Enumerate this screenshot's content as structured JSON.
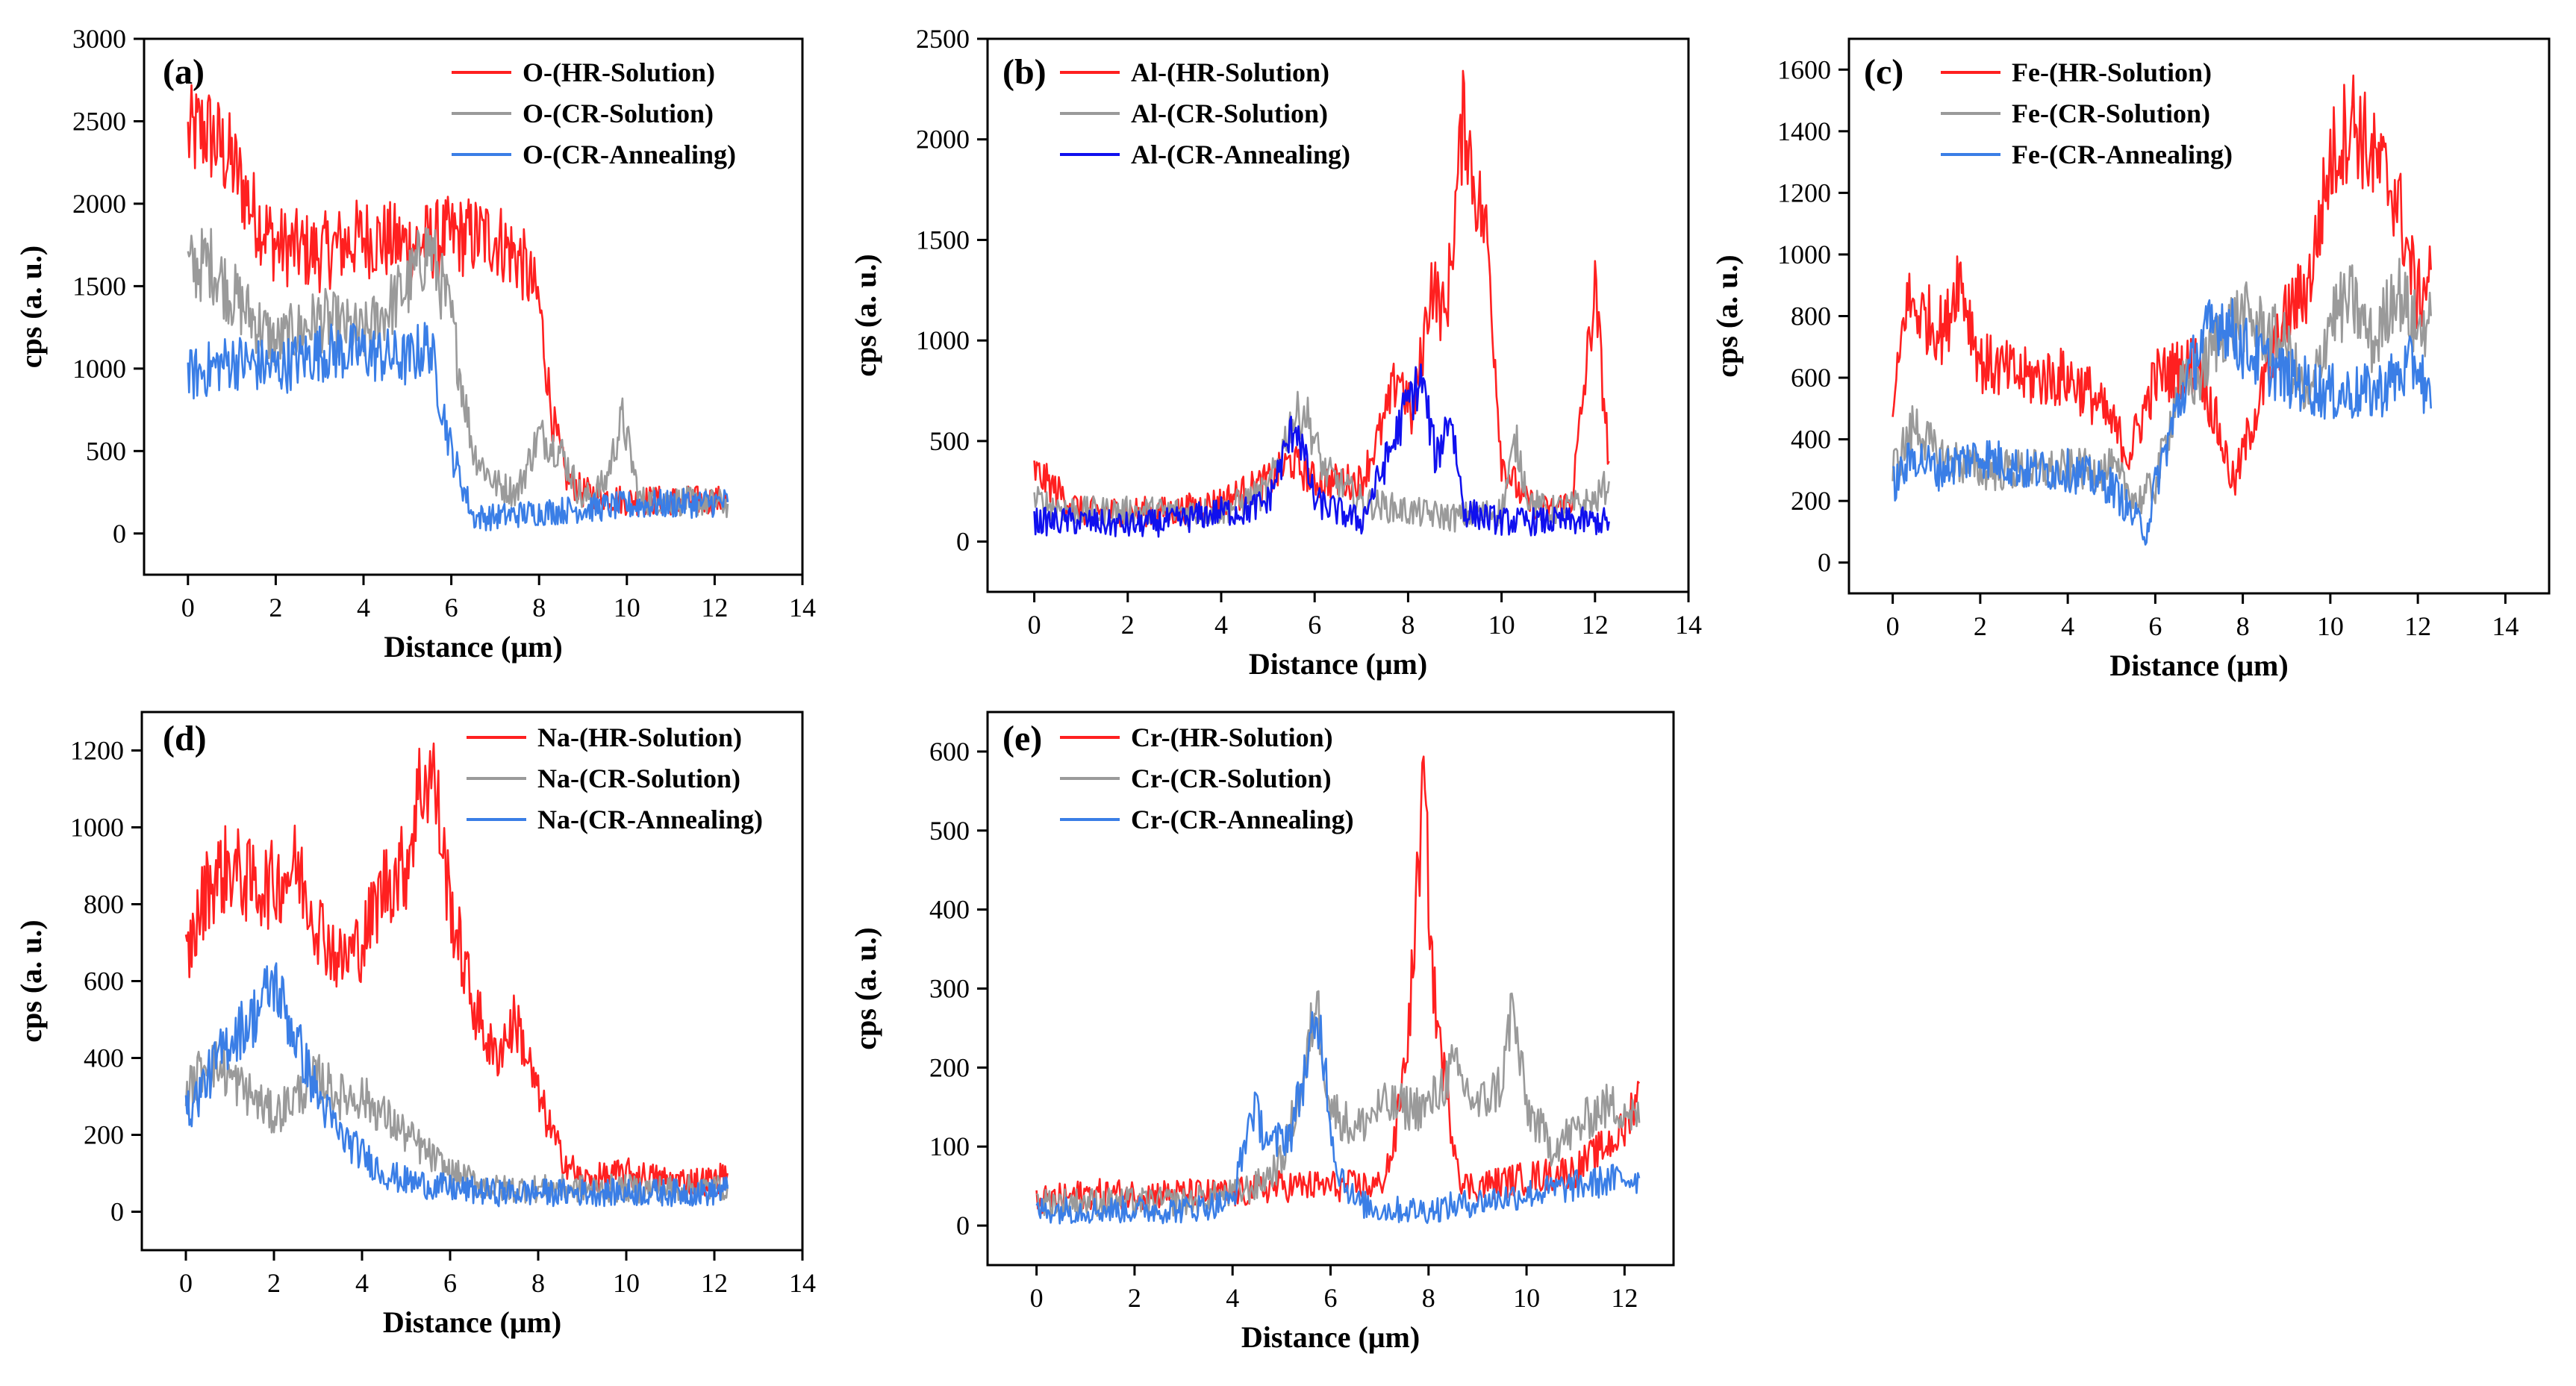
{
  "colors": {
    "hr": "#ff2020",
    "cr": "#9a9a9a",
    "ann": "#3a7ee6",
    "ann_b": "#1010ee"
  },
  "chart_data": [
    {
      "type": "line",
      "panel": "(a)",
      "xlabel": "Distance (μm)",
      "ylabel": "cps (a. u.)",
      "xlim": [
        -1,
        14
      ],
      "ylim": [
        -250,
        3000
      ],
      "xticks": [
        0,
        2,
        4,
        6,
        8,
        10,
        12,
        14
      ],
      "yticks": [
        0,
        500,
        1000,
        1500,
        2000,
        2500,
        3000
      ],
      "legend_position": "top-right",
      "series": [
        {
          "name": "O-(HR-Solution)",
          "color": "hr",
          "x": [
            0,
            0.4,
            1,
            1.5,
            2,
            3,
            4,
            5,
            6,
            7,
            7.6,
            8,
            8.3,
            8.6,
            9,
            10,
            11,
            12.3
          ],
          "y": [
            2400,
            2450,
            2250,
            1950,
            1750,
            1700,
            1800,
            1750,
            1800,
            1800,
            1650,
            1400,
            700,
            350,
            250,
            200,
            200,
            200
          ]
        },
        {
          "name": "O-(CR-Solution)",
          "color": "cr",
          "x": [
            0,
            0.5,
            1,
            2,
            3,
            4,
            5,
            5.5,
            6,
            6.5,
            7,
            7.5,
            8,
            8.5,
            9,
            9.5,
            9.9,
            10.3,
            11,
            12.3
          ],
          "y": [
            1600,
            1650,
            1450,
            1150,
            1300,
            1200,
            1500,
            1750,
            1300,
            500,
            300,
            250,
            600,
            500,
            200,
            300,
            700,
            200,
            200,
            180
          ]
        },
        {
          "name": "O-(CR-Annealing)",
          "color": "ann",
          "x": [
            0,
            1,
            2,
            3,
            4,
            5,
            5.5,
            6,
            6.5,
            7,
            8,
            9,
            10,
            11,
            12.3
          ],
          "y": [
            950,
            1050,
            1000,
            1100,
            1100,
            1050,
            1150,
            500,
            100,
            100,
            130,
            150,
            170,
            180,
            190
          ]
        }
      ]
    },
    {
      "type": "line",
      "panel": "(b)",
      "xlabel": "Distance (μm)",
      "ylabel": "cps (a. u.)",
      "xlim": [
        -1,
        14
      ],
      "ylim": [
        -250,
        2500
      ],
      "xticks": [
        0,
        2,
        4,
        6,
        8,
        10,
        12,
        14
      ],
      "yticks": [
        0,
        500,
        1000,
        1500,
        2000,
        2500
      ],
      "legend_position": "top-left",
      "series": [
        {
          "name": "Al-(HR-Solution)",
          "color": "hr",
          "x": [
            0,
            0.5,
            1,
            2,
            3,
            4,
            5,
            5.5,
            6,
            7,
            7.5,
            7.8,
            8.1,
            8.5,
            8.8,
            9.2,
            9.4,
            9.7,
            10,
            10.5,
            11,
            11.5,
            12,
            12.3
          ],
          "y": [
            350,
            250,
            150,
            150,
            150,
            200,
            300,
            400,
            300,
            300,
            600,
            850,
            600,
            1300,
            1100,
            2150,
            1800,
            1500,
            400,
            200,
            150,
            200,
            1250,
            400
          ]
        },
        {
          "name": "Al-(CR-Solution)",
          "color": "cr",
          "x": [
            0,
            1,
            2,
            3,
            4,
            5,
            5.5,
            5.8,
            6.2,
            7,
            8,
            9,
            10,
            10.3,
            10.6,
            11,
            12,
            12.3
          ],
          "y": [
            200,
            150,
            150,
            150,
            150,
            250,
            600,
            650,
            350,
            200,
            150,
            120,
            150,
            500,
            200,
            150,
            200,
            300
          ]
        },
        {
          "name": "Al-(CR-Annealing)",
          "color": "ann_b",
          "x": [
            0,
            1,
            2,
            3,
            4,
            4.5,
            5,
            5.6,
            6,
            7,
            7.7,
            8,
            8.3,
            8.6,
            8.9,
            9.2,
            10,
            11,
            12,
            12.3
          ],
          "y": [
            100,
            100,
            80,
            100,
            150,
            150,
            200,
            600,
            200,
            100,
            500,
            700,
            800,
            400,
            650,
            150,
            100,
            100,
            100,
            100
          ]
        }
      ]
    },
    {
      "type": "line",
      "panel": "(c)",
      "xlabel": "Distance (μm)",
      "ylabel": "cps (a. u.)",
      "xlim": [
        -1,
        15
      ],
      "ylim": [
        -100,
        1700
      ],
      "xticks": [
        0,
        2,
        4,
        6,
        8,
        10,
        12,
        14
      ],
      "yticks": [
        0,
        200,
        400,
        600,
        800,
        1000,
        1200,
        1400,
        1600
      ],
      "legend_position": "top-left",
      "series": [
        {
          "name": "Fe-(HR-Solution)",
          "color": "hr",
          "x": [
            0,
            0.3,
            0.7,
            1.2,
            1.5,
            2,
            3,
            4,
            4.5,
            5,
            5.4,
            6,
            7,
            7.5,
            7.8,
            8.2,
            9,
            9.5,
            10,
            10.5,
            11,
            11.5,
            12,
            12.3
          ],
          "y": [
            450,
            850,
            800,
            750,
            950,
            650,
            600,
            600,
            550,
            450,
            350,
            600,
            650,
            400,
            250,
            450,
            800,
            900,
            1300,
            1450,
            1300,
            1200,
            850,
            950
          ]
        },
        {
          "name": "Fe-(CR-Solution)",
          "color": "cr",
          "x": [
            0,
            0.5,
            1,
            2,
            3,
            4,
            5,
            5.6,
            6,
            6.5,
            7,
            7.5,
            8,
            8.5,
            9,
            9.5,
            10,
            10.5,
            11,
            11.5,
            12,
            12.3
          ],
          "y": [
            300,
            450,
            350,
            300,
            300,
            300,
            300,
            200,
            250,
            550,
            600,
            750,
            800,
            750,
            700,
            500,
            800,
            850,
            700,
            900,
            750,
            800
          ]
        },
        {
          "name": "Fe-(CR-Annealing)",
          "color": "ann",
          "x": [
            0,
            0.5,
            1,
            2,
            3,
            4,
            5,
            5.5,
            5.8,
            6,
            6.5,
            7,
            7.5,
            8,
            8.5,
            9,
            10,
            11,
            12,
            12.3
          ],
          "y": [
            250,
            350,
            300,
            350,
            300,
            300,
            250,
            150,
            100,
            250,
            500,
            700,
            800,
            700,
            650,
            600,
            550,
            550,
            650,
            500
          ]
        }
      ]
    },
    {
      "type": "line",
      "panel": "(d)",
      "xlabel": "Distance (μm)",
      "ylabel": "cps (a. u.)",
      "xlim": [
        -1,
        14
      ],
      "ylim": [
        -100,
        1300
      ],
      "xticks": [
        0,
        2,
        4,
        6,
        8,
        10,
        12,
        14
      ],
      "yticks": [
        0,
        200,
        400,
        600,
        800,
        1000,
        1200
      ],
      "legend_position": "top-right",
      "series": [
        {
          "name": "Na-(HR-Solution)",
          "color": "hr",
          "x": [
            0,
            0.5,
            1,
            1.5,
            2,
            2.5,
            3,
            3.5,
            4,
            4.5,
            5,
            5.3,
            5.6,
            6,
            6.5,
            7,
            7.5,
            8,
            8.5,
            9,
            10,
            11,
            12,
            12.3
          ],
          "y": [
            650,
            850,
            900,
            850,
            850,
            900,
            750,
            650,
            700,
            850,
            900,
            1100,
            1150,
            800,
            550,
            400,
            500,
            300,
            150,
            80,
            100,
            80,
            80,
            100
          ]
        },
        {
          "name": "Na-(CR-Solution)",
          "color": "cr",
          "x": [
            0,
            0.5,
            1,
            1.5,
            2,
            2.5,
            3,
            3.5,
            4,
            4.5,
            5,
            6,
            7,
            8,
            9,
            10,
            11,
            12,
            12.3
          ],
          "y": [
            300,
            400,
            350,
            300,
            250,
            300,
            350,
            300,
            300,
            250,
            200,
            100,
            60,
            60,
            60,
            60,
            60,
            60,
            70
          ]
        },
        {
          "name": "Na-(CR-Annealing)",
          "color": "ann",
          "x": [
            0,
            0.5,
            1,
            1.5,
            2,
            2.5,
            3,
            3.5,
            4,
            4.5,
            5,
            6,
            7,
            8,
            9,
            10,
            11,
            12,
            12.3
          ],
          "y": [
            250,
            350,
            450,
            500,
            600,
            450,
            300,
            200,
            150,
            100,
            80,
            60,
            50,
            50,
            50,
            50,
            50,
            50,
            60
          ]
        }
      ]
    },
    {
      "type": "line",
      "panel": "(e)",
      "xlabel": "Distance (μm)",
      "ylabel": "cps (a. u.)",
      "xlim": [
        -1,
        13
      ],
      "ylim": [
        -50,
        650
      ],
      "xticks": [
        0,
        2,
        4,
        6,
        8,
        10,
        12
      ],
      "yticks": [
        0,
        100,
        200,
        300,
        400,
        500,
        600
      ],
      "legend_position": "top-left",
      "series": [
        {
          "name": "Cr-(HR-Solution)",
          "color": "hr",
          "x": [
            0,
            1,
            2,
            3,
            4,
            5,
            6,
            7,
            7.3,
            7.6,
            7.9,
            8.1,
            8.4,
            8.7,
            9,
            10,
            11,
            12,
            12.3
          ],
          "y": [
            30,
            40,
            40,
            40,
            40,
            50,
            50,
            50,
            100,
            250,
            560,
            300,
            150,
            50,
            50,
            60,
            70,
            120,
            180
          ]
        },
        {
          "name": "Cr-(CR-Solution)",
          "color": "cr",
          "x": [
            0,
            1,
            2,
            3,
            4,
            4.5,
            5,
            5.5,
            5.7,
            6,
            6.5,
            7,
            7.5,
            8,
            8.5,
            9,
            9.5,
            9.7,
            10,
            10.5,
            11,
            11.5,
            12,
            12.3
          ],
          "y": [
            30,
            30,
            30,
            30,
            40,
            50,
            80,
            200,
            290,
            150,
            120,
            150,
            150,
            150,
            200,
            150,
            180,
            280,
            150,
            100,
            120,
            150,
            150,
            130
          ]
        },
        {
          "name": "Cr-(CR-Annealing)",
          "color": "ann",
          "x": [
            0,
            1,
            2,
            3,
            4,
            4.4,
            4.8,
            5.2,
            5.6,
            5.8,
            6.1,
            6.5,
            7,
            8,
            9,
            10,
            11,
            12,
            12.3
          ],
          "y": [
            20,
            20,
            20,
            20,
            30,
            150,
            100,
            120,
            230,
            250,
            80,
            30,
            20,
            20,
            30,
            40,
            50,
            60,
            60
          ]
        }
      ]
    }
  ]
}
